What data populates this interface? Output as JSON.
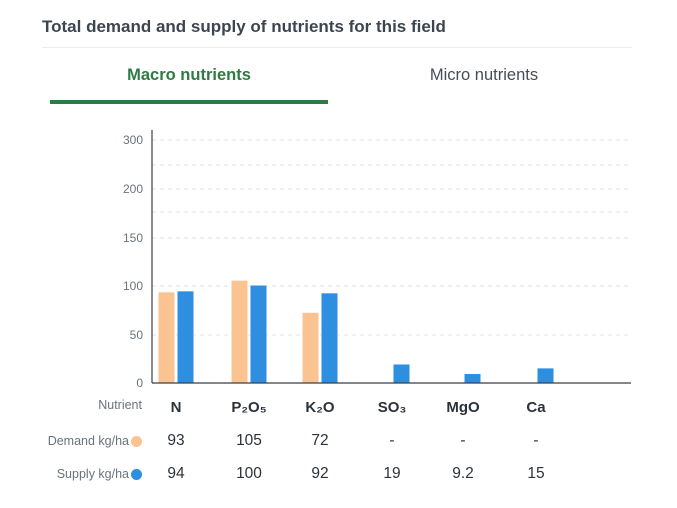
{
  "header": {
    "title": "Total demand and supply of nutrients for this field"
  },
  "tabs": [
    {
      "label": "Macro nutrients",
      "active": true
    },
    {
      "label": "Micro nutrients",
      "active": false
    }
  ],
  "colors": {
    "demand": "#fbc392",
    "supply": "#2e8fe0",
    "accent": "#2f7a45"
  },
  "table": {
    "nutrient_label": "Nutrient",
    "demand_label": "Demand kg/ha",
    "supply_label": "Supply kg/ha",
    "demand_values": [
      "93",
      "105",
      "72",
      "-",
      "-",
      "-"
    ],
    "supply_values": [
      "94",
      "100",
      "92",
      "19",
      "9.2",
      "15"
    ]
  },
  "chart_data": {
    "type": "bar",
    "categories": [
      "N",
      "P₂O₅",
      "K₂O",
      "SO₃",
      "MgO",
      "Ca"
    ],
    "series": [
      {
        "name": "Demand kg/ha",
        "values": [
          93,
          105,
          72,
          null,
          null,
          null
        ]
      },
      {
        "name": "Supply kg/ha",
        "values": [
          94,
          100,
          92,
          19,
          9.2,
          15
        ]
      }
    ],
    "yticks": [
      "0",
      "50",
      "100",
      "150",
      "200",
      "300"
    ],
    "grid": true
  }
}
